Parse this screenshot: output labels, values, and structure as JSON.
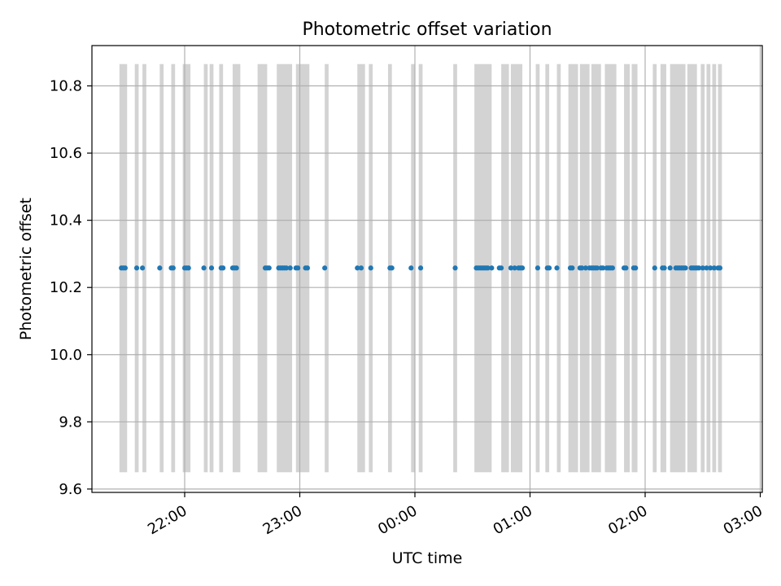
{
  "chart_data": {
    "type": "scatter",
    "title": "Photometric offset variation",
    "xlabel": "UTC time",
    "ylabel": "Photometric offset",
    "grid": true,
    "x_tick_labels": [
      "22:00",
      "23:00",
      "00:00",
      "01:00",
      "02:00",
      "03:00"
    ],
    "x_tick_times": [
      "22:00",
      "23:00",
      "00:00",
      "01:00",
      "02:00",
      "03:00"
    ],
    "y_tick_labels": [
      "9.6",
      "9.8",
      "10.0",
      "10.2",
      "10.4",
      "10.6",
      "10.8"
    ],
    "ylim": [
      9.59,
      10.92
    ],
    "xlim": [
      "21:35",
      "03:00"
    ],
    "span_y": [
      9.65,
      10.865
    ],
    "colors": {
      "points": "#1f77b4",
      "spans": "#d3d3d3",
      "grid": "#b0b0b0",
      "axes": "#000000"
    },
    "shaded_intervals": [
      [
        "21:26",
        "21:30"
      ],
      [
        "21:34",
        "21:36"
      ],
      [
        "21:38",
        "21:40"
      ],
      [
        "21:47",
        "21:49"
      ],
      [
        "21:53",
        "21:55"
      ],
      [
        "21:59",
        "22:03"
      ],
      [
        "22:10",
        "22:12"
      ],
      [
        "22:13",
        "22:15"
      ],
      [
        "22:18",
        "22:20"
      ],
      [
        "22:25",
        "22:29"
      ],
      [
        "22:38",
        "22:43"
      ],
      [
        "22:48",
        "22:56"
      ],
      [
        "22:58",
        "23:05"
      ],
      [
        "23:13",
        "23:15"
      ],
      [
        "23:30",
        "23:34"
      ],
      [
        "23:36",
        "23:38"
      ],
      [
        "23:46",
        "23:48"
      ],
      [
        "23:58",
        "24:00"
      ],
      [
        "24:02",
        "24:04"
      ],
      [
        "24:20",
        "24:22"
      ],
      [
        "24:31",
        "24:40"
      ],
      [
        "24:45",
        "24:49"
      ],
      [
        "24:50",
        "24:56"
      ],
      [
        "25:03",
        "25:05"
      ],
      [
        "25:08",
        "25:10"
      ],
      [
        "25:14",
        "25:16"
      ],
      [
        "25:20",
        "25:25"
      ],
      [
        "25:26",
        "25:31"
      ],
      [
        "25:32",
        "25:37"
      ],
      [
        "25:39",
        "25:45"
      ],
      [
        "25:49",
        "25:52"
      ],
      [
        "25:53",
        "25:56"
      ],
      [
        "26:04",
        "26:06"
      ],
      [
        "26:08",
        "26:11"
      ],
      [
        "26:13",
        "26:21"
      ],
      [
        "26:22",
        "26:27"
      ],
      [
        "26:29",
        "26:31"
      ],
      [
        "26:32",
        "26:34"
      ],
      [
        "26:35",
        "26:37"
      ],
      [
        "26:38",
        "26:40"
      ]
    ],
    "series": [
      {
        "x": [
          "21:27",
          "21:28",
          "21:29",
          "21:35",
          "21:38",
          "21:47",
          "21:53",
          "21:54",
          "22:00",
          "22:01",
          "22:02",
          "22:10",
          "22:14",
          "22:19",
          "22:20",
          "22:25",
          "22:26",
          "22:27",
          "22:42",
          "22:43",
          "22:44",
          "22:49",
          "22:50",
          "22:51",
          "22:52",
          "22:53",
          "22:55",
          "22:58",
          "22:59",
          "23:03",
          "23:04",
          "23:13",
          "23:30",
          "23:32",
          "23:37",
          "23:47",
          "23:48",
          "23:58",
          "24:03",
          "24:21",
          "24:32",
          "24:33",
          "24:34",
          "24:35",
          "24:36",
          "24:37",
          "24:38",
          "24:40",
          "24:44",
          "24:45",
          "24:50",
          "24:52",
          "24:54",
          "24:55",
          "24:56",
          "25:04",
          "25:09",
          "25:10",
          "25:14",
          "25:21",
          "25:22",
          "25:26",
          "25:27",
          "25:29",
          "25:31",
          "25:32",
          "25:33",
          "25:34",
          "25:35",
          "25:37",
          "25:38",
          "25:40",
          "25:41",
          "25:42",
          "25:43",
          "25:49",
          "25:50",
          "25:54",
          "25:55",
          "26:05",
          "26:09",
          "26:10",
          "26:13",
          "26:16",
          "26:17",
          "26:18",
          "26:19",
          "26:20",
          "26:21",
          "26:24",
          "26:25",
          "26:26",
          "26:27",
          "26:28",
          "26:30",
          "26:32",
          "26:34",
          "26:36",
          "26:38",
          "26:39"
        ],
        "y": [
          10.258,
          10.258,
          10.258,
          10.258,
          10.258,
          10.258,
          10.258,
          10.258,
          10.258,
          10.258,
          10.258,
          10.258,
          10.258,
          10.258,
          10.258,
          10.258,
          10.258,
          10.258,
          10.258,
          10.258,
          10.258,
          10.258,
          10.258,
          10.258,
          10.258,
          10.258,
          10.258,
          10.258,
          10.258,
          10.258,
          10.258,
          10.258,
          10.258,
          10.258,
          10.258,
          10.258,
          10.258,
          10.258,
          10.258,
          10.258,
          10.258,
          10.258,
          10.258,
          10.258,
          10.258,
          10.258,
          10.258,
          10.258,
          10.258,
          10.258,
          10.258,
          10.258,
          10.258,
          10.258,
          10.258,
          10.258,
          10.258,
          10.258,
          10.258,
          10.258,
          10.258,
          10.258,
          10.258,
          10.258,
          10.258,
          10.258,
          10.258,
          10.258,
          10.258,
          10.258,
          10.258,
          10.258,
          10.258,
          10.258,
          10.258,
          10.258,
          10.258,
          10.258,
          10.258,
          10.258,
          10.258,
          10.258,
          10.258,
          10.258,
          10.258,
          10.258,
          10.258,
          10.258,
          10.258,
          10.258,
          10.258,
          10.258,
          10.258,
          10.258,
          10.258,
          10.258,
          10.258,
          10.258,
          10.258,
          10.258
        ]
      }
    ]
  }
}
